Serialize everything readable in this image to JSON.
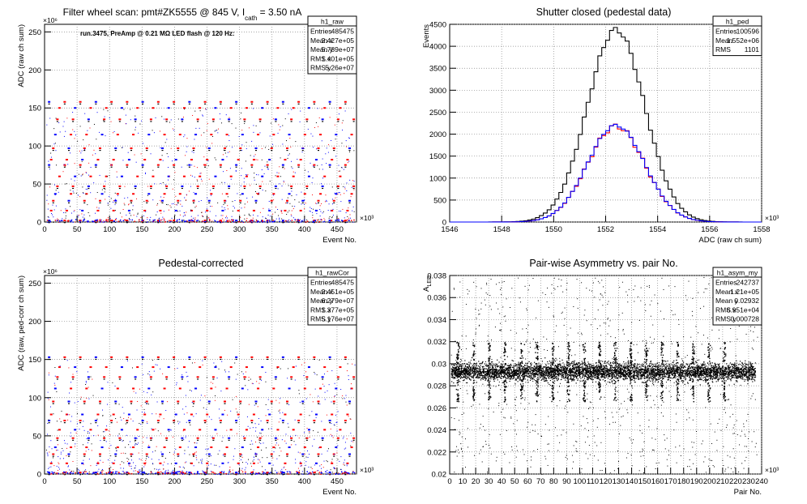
{
  "colors": {
    "red": "#ff0000",
    "blue": "#0000ff",
    "black": "#000000",
    "grid": "#888888"
  },
  "chart_data": [
    {
      "id": "raw",
      "type": "scatter",
      "title": "Filter wheel scan: pmt#ZK5555 @   845 V, I",
      "title_sub": "cath",
      "title_tail": " = 3.50 nA",
      "note": "run.3475, PreAmp @ 0.21 MΩ LED flash @  120 Hz:",
      "xlabel": "Event No.",
      "ylabel": "ADC (raw ch sum)",
      "x_exponent": "×10³",
      "y_exponent": "×10⁶",
      "xlim": [
        0,
        480
      ],
      "ylim": [
        0,
        260
      ],
      "xticks": [
        "0",
        "50",
        "100",
        "150",
        "200",
        "250",
        "300",
        "350",
        "400",
        "450"
      ],
      "yticks": [
        "0",
        "50",
        "100",
        "150",
        "200",
        "250"
      ],
      "levels": [
        2,
        15,
        28,
        37,
        47,
        60,
        75,
        82,
        97,
        115,
        135,
        150,
        158
      ],
      "period_x": 24,
      "stats": {
        "name": "h1_raw",
        "rows": [
          [
            "Entries",
            "485475"
          ],
          [
            "Mean x",
            "2.427e+05"
          ],
          [
            "Mean y",
            "5.789e+07"
          ],
          [
            "RMS x",
            "1.401e+05"
          ],
          [
            "RMS y",
            "5.26e+07"
          ]
        ]
      }
    },
    {
      "id": "ped",
      "type": "histogram",
      "title": "Shutter closed (pedestal data)",
      "xlabel": "ADC (raw ch sum)",
      "ylabel": "Events",
      "x_exponent": "×10³",
      "xlim": [
        1546,
        1558
      ],
      "ylim": [
        0,
        4500
      ],
      "xticks": [
        "1546",
        "1548",
        "1550",
        "1552",
        "1554",
        "1556",
        "1558"
      ],
      "yticks": [
        "0",
        "500",
        "1000",
        "1500",
        "2000",
        "2500",
        "3000",
        "3500",
        "4000",
        "4500"
      ],
      "series": [
        {
          "color": "black",
          "mean": 1552.4,
          "sigma": 1.1,
          "peak": 4380
        },
        {
          "color": "red",
          "mean": 1552.4,
          "sigma": 1.1,
          "peak": 2180
        },
        {
          "color": "blue",
          "mean": 1552.4,
          "sigma": 1.1,
          "peak": 2200
        }
      ],
      "stats": {
        "name": "h1_ped",
        "rows": [
          [
            "Entries",
            "100596"
          ],
          [
            "Mean",
            "1.552e+06"
          ],
          [
            "RMS",
            "1101"
          ]
        ]
      }
    },
    {
      "id": "rawcor",
      "type": "scatter",
      "title": "Pedestal-corrected",
      "xlabel": "Event No.",
      "ylabel": "ADC (raw, ped-corr ch sum)",
      "x_exponent": "×10³",
      "y_exponent": "×10⁶",
      "xlim": [
        0,
        480
      ],
      "ylim": [
        0,
        260
      ],
      "xticks": [
        "0",
        "50",
        "100",
        "150",
        "200",
        "250",
        "300",
        "350",
        "400",
        "450"
      ],
      "yticks": [
        "0",
        "50",
        "100",
        "150",
        "200",
        "250"
      ],
      "levels": [
        2,
        14,
        26,
        35,
        47,
        58,
        70,
        78,
        95,
        112,
        127,
        140,
        153
      ],
      "period_x": 24,
      "stats": {
        "name": "h1_rawCor",
        "rows": [
          [
            "Entries",
            "485475"
          ],
          [
            "Mean x",
            "2.451e+05"
          ],
          [
            "Mean y",
            "6.279e+07"
          ],
          [
            "RMS x",
            "1.377e+05"
          ],
          [
            "RMS y",
            "5.176e+07"
          ]
        ]
      }
    },
    {
      "id": "asym",
      "type": "scatter",
      "title": "Pair-wise Asymmetry vs. pair No.",
      "xlabel": "Pair No.",
      "ylabel": "A",
      "ylabel_sub": "LED",
      "x_exponent": "×10³",
      "xlim": [
        0,
        240
      ],
      "ylim": [
        0.02,
        0.038
      ],
      "xticks": [
        "0",
        "10",
        "20",
        "30",
        "40",
        "50",
        "60",
        "70",
        "80",
        "90",
        "100",
        "110",
        "120",
        "130",
        "140",
        "150",
        "160",
        "170",
        "180",
        "190",
        "200",
        "210",
        "220",
        "230",
        "240"
      ],
      "yticks": [
        "0.02",
        "0.022",
        "0.024",
        "0.026",
        "0.028",
        "0.03",
        "0.032",
        "0.034",
        "0.036",
        "0.038"
      ],
      "band_center": 0.0293,
      "band_halfwidth": 0.0007,
      "spike_positions": [
        6,
        18,
        30,
        42,
        55,
        67,
        79,
        91,
        103,
        115,
        127,
        139,
        151,
        163,
        175,
        187,
        199,
        211
      ],
      "stats": {
        "name": "h1_asym_my",
        "rows": [
          [
            "Entries",
            "242737"
          ],
          [
            "Mean x",
            "1.21e+05"
          ],
          [
            "Mean y",
            "0.02932"
          ],
          [
            "RMS x",
            "6.951e+04"
          ],
          [
            "RMS y",
            "0.000728"
          ]
        ]
      }
    }
  ]
}
